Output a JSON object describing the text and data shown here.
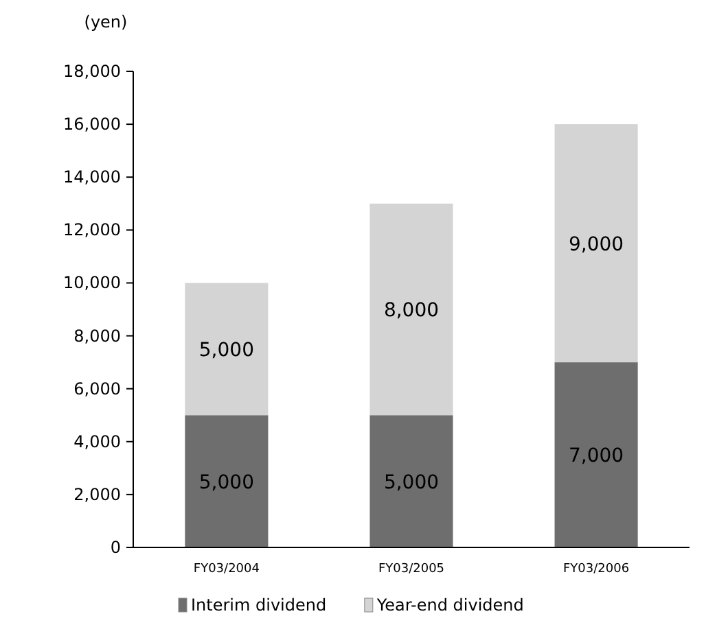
{
  "chart_data": {
    "type": "bar",
    "ylabel": "(yen)",
    "categories": [
      "FY03/2004",
      "FY03/2005",
      "FY03/2006"
    ],
    "stacked": true,
    "series": [
      {
        "name": "Interim dividend",
        "color": "#6e6e6e",
        "values": [
          5000,
          5000,
          7000
        ],
        "value_labels": [
          "5,000",
          "5,000",
          "7,000"
        ]
      },
      {
        "name": "Year-end dividend",
        "color": "#d4d4d4",
        "values": [
          5000,
          8000,
          9000
        ],
        "value_labels": [
          "5,000",
          "8,000",
          "9,000"
        ]
      }
    ],
    "ylim": [
      0,
      18000
    ],
    "yticks": [
      {
        "value": 0,
        "label": "0"
      },
      {
        "value": 2000,
        "label": "2,000"
      },
      {
        "value": 4000,
        "label": "4,000"
      },
      {
        "value": 6000,
        "label": "6,000"
      },
      {
        "value": 8000,
        "label": "8,000"
      },
      {
        "value": 10000,
        "label": "10,000"
      },
      {
        "value": 12000,
        "label": "12,000"
      },
      {
        "value": 14000,
        "label": "14,000"
      },
      {
        "value": 16000,
        "label": "16,000"
      },
      {
        "value": 18000,
        "label": "18,000"
      }
    ],
    "legend": "bottom",
    "grid": false
  }
}
